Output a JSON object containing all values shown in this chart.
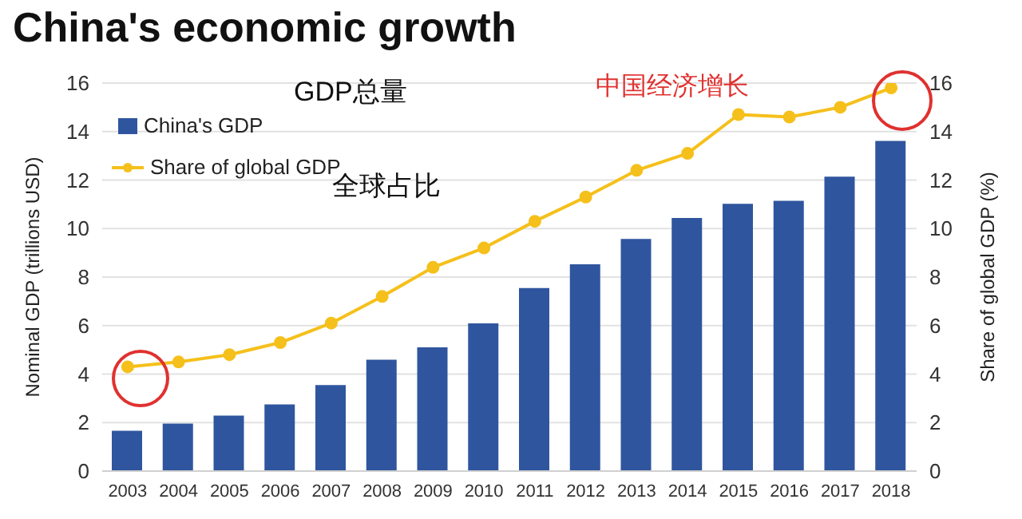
{
  "chart_data": {
    "type": "bar",
    "title": "China's economic growth",
    "categories": [
      "2003",
      "2004",
      "2005",
      "2006",
      "2007",
      "2008",
      "2009",
      "2010",
      "2011",
      "2012",
      "2013",
      "2014",
      "2015",
      "2016",
      "2017",
      "2018"
    ],
    "series": [
      {
        "name": "China's GDP",
        "color": "#2f559e",
        "values": [
          1.66,
          1.96,
          2.29,
          2.75,
          3.55,
          4.59,
          5.1,
          6.09,
          7.55,
          8.53,
          9.57,
          10.44,
          11.02,
          11.14,
          12.14,
          13.61
        ]
      },
      {
        "name": "Share of global GDP",
        "type": "line",
        "axis": "y2",
        "color": "#f5c01b",
        "values": [
          4.3,
          4.5,
          4.8,
          5.3,
          6.1,
          7.2,
          8.4,
          9.2,
          10.3,
          11.3,
          12.4,
          13.1,
          14.7,
          14.6,
          15.0,
          15.8
        ]
      }
    ],
    "ylabel": "Nominal GDP (trillions USD)",
    "y2label": "Share of global GDP (%)",
    "ylim": [
      0,
      16
    ],
    "yticks": [
      0,
      2,
      4,
      6,
      8,
      10,
      12,
      14,
      16
    ],
    "y2lim": [
      0,
      16
    ],
    "y2ticks": [
      0,
      2,
      4,
      6,
      8,
      10,
      12,
      14,
      16
    ],
    "grid": "y",
    "legend": "top left",
    "marker": "circle",
    "annotations": [
      "GDP总量",
      "全球占比",
      "中国经济增长"
    ]
  }
}
